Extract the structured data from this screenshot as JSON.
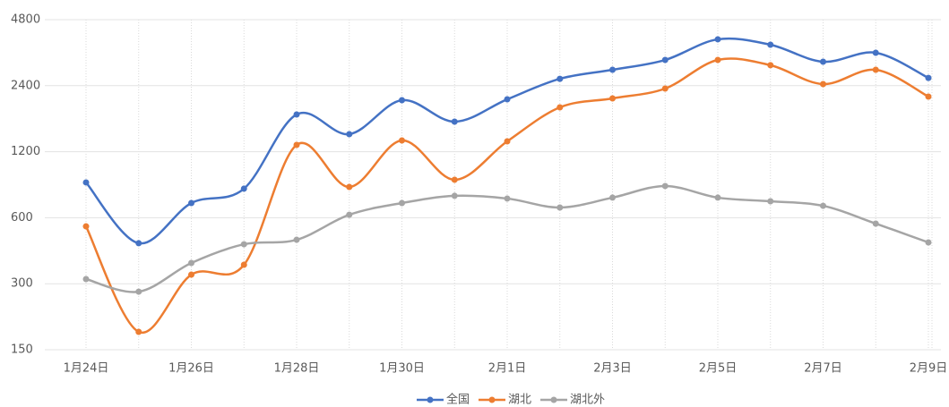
{
  "chart_data": {
    "type": "line",
    "categories": [
      "1月24日",
      null,
      "1月26日",
      null,
      "1月28日",
      null,
      "1月30日",
      null,
      "2月1日",
      null,
      "2月3日",
      null,
      "2月5日",
      null,
      "2月7日",
      null,
      "2月9日"
    ],
    "series": [
      {
        "name": "全国",
        "color": "#4472c4",
        "values": [
          869,
          459,
          700,
          814,
          1774,
          1443,
          2061,
          1645,
          2080,
          2580,
          2836,
          3145,
          3906,
          3690,
          3087,
          3392,
          2604
        ]
      },
      {
        "name": "湖北",
        "color": "#ed7d31",
        "values": [
          548,
          181,
          330,
          366,
          1289,
          829,
          1351,
          894,
          1338,
          1912,
          2101,
          2329,
          3145,
          2976,
          2441,
          2836,
          2140
        ]
      },
      {
        "name": "湖北外",
        "color": "#a5a5a5",
        "values": [
          315,
          276,
          373,
          454,
          476,
          619,
          700,
          755,
          734,
          668,
          741,
          837,
          741,
          713,
          680,
          564,
          463
        ]
      }
    ],
    "ylim": [
      150,
      4800
    ],
    "yticks": [
      150,
      300,
      600,
      1200,
      2400,
      4800
    ],
    "log_scale": true,
    "grid": true,
    "legend": "bottom",
    "smooth": true
  }
}
